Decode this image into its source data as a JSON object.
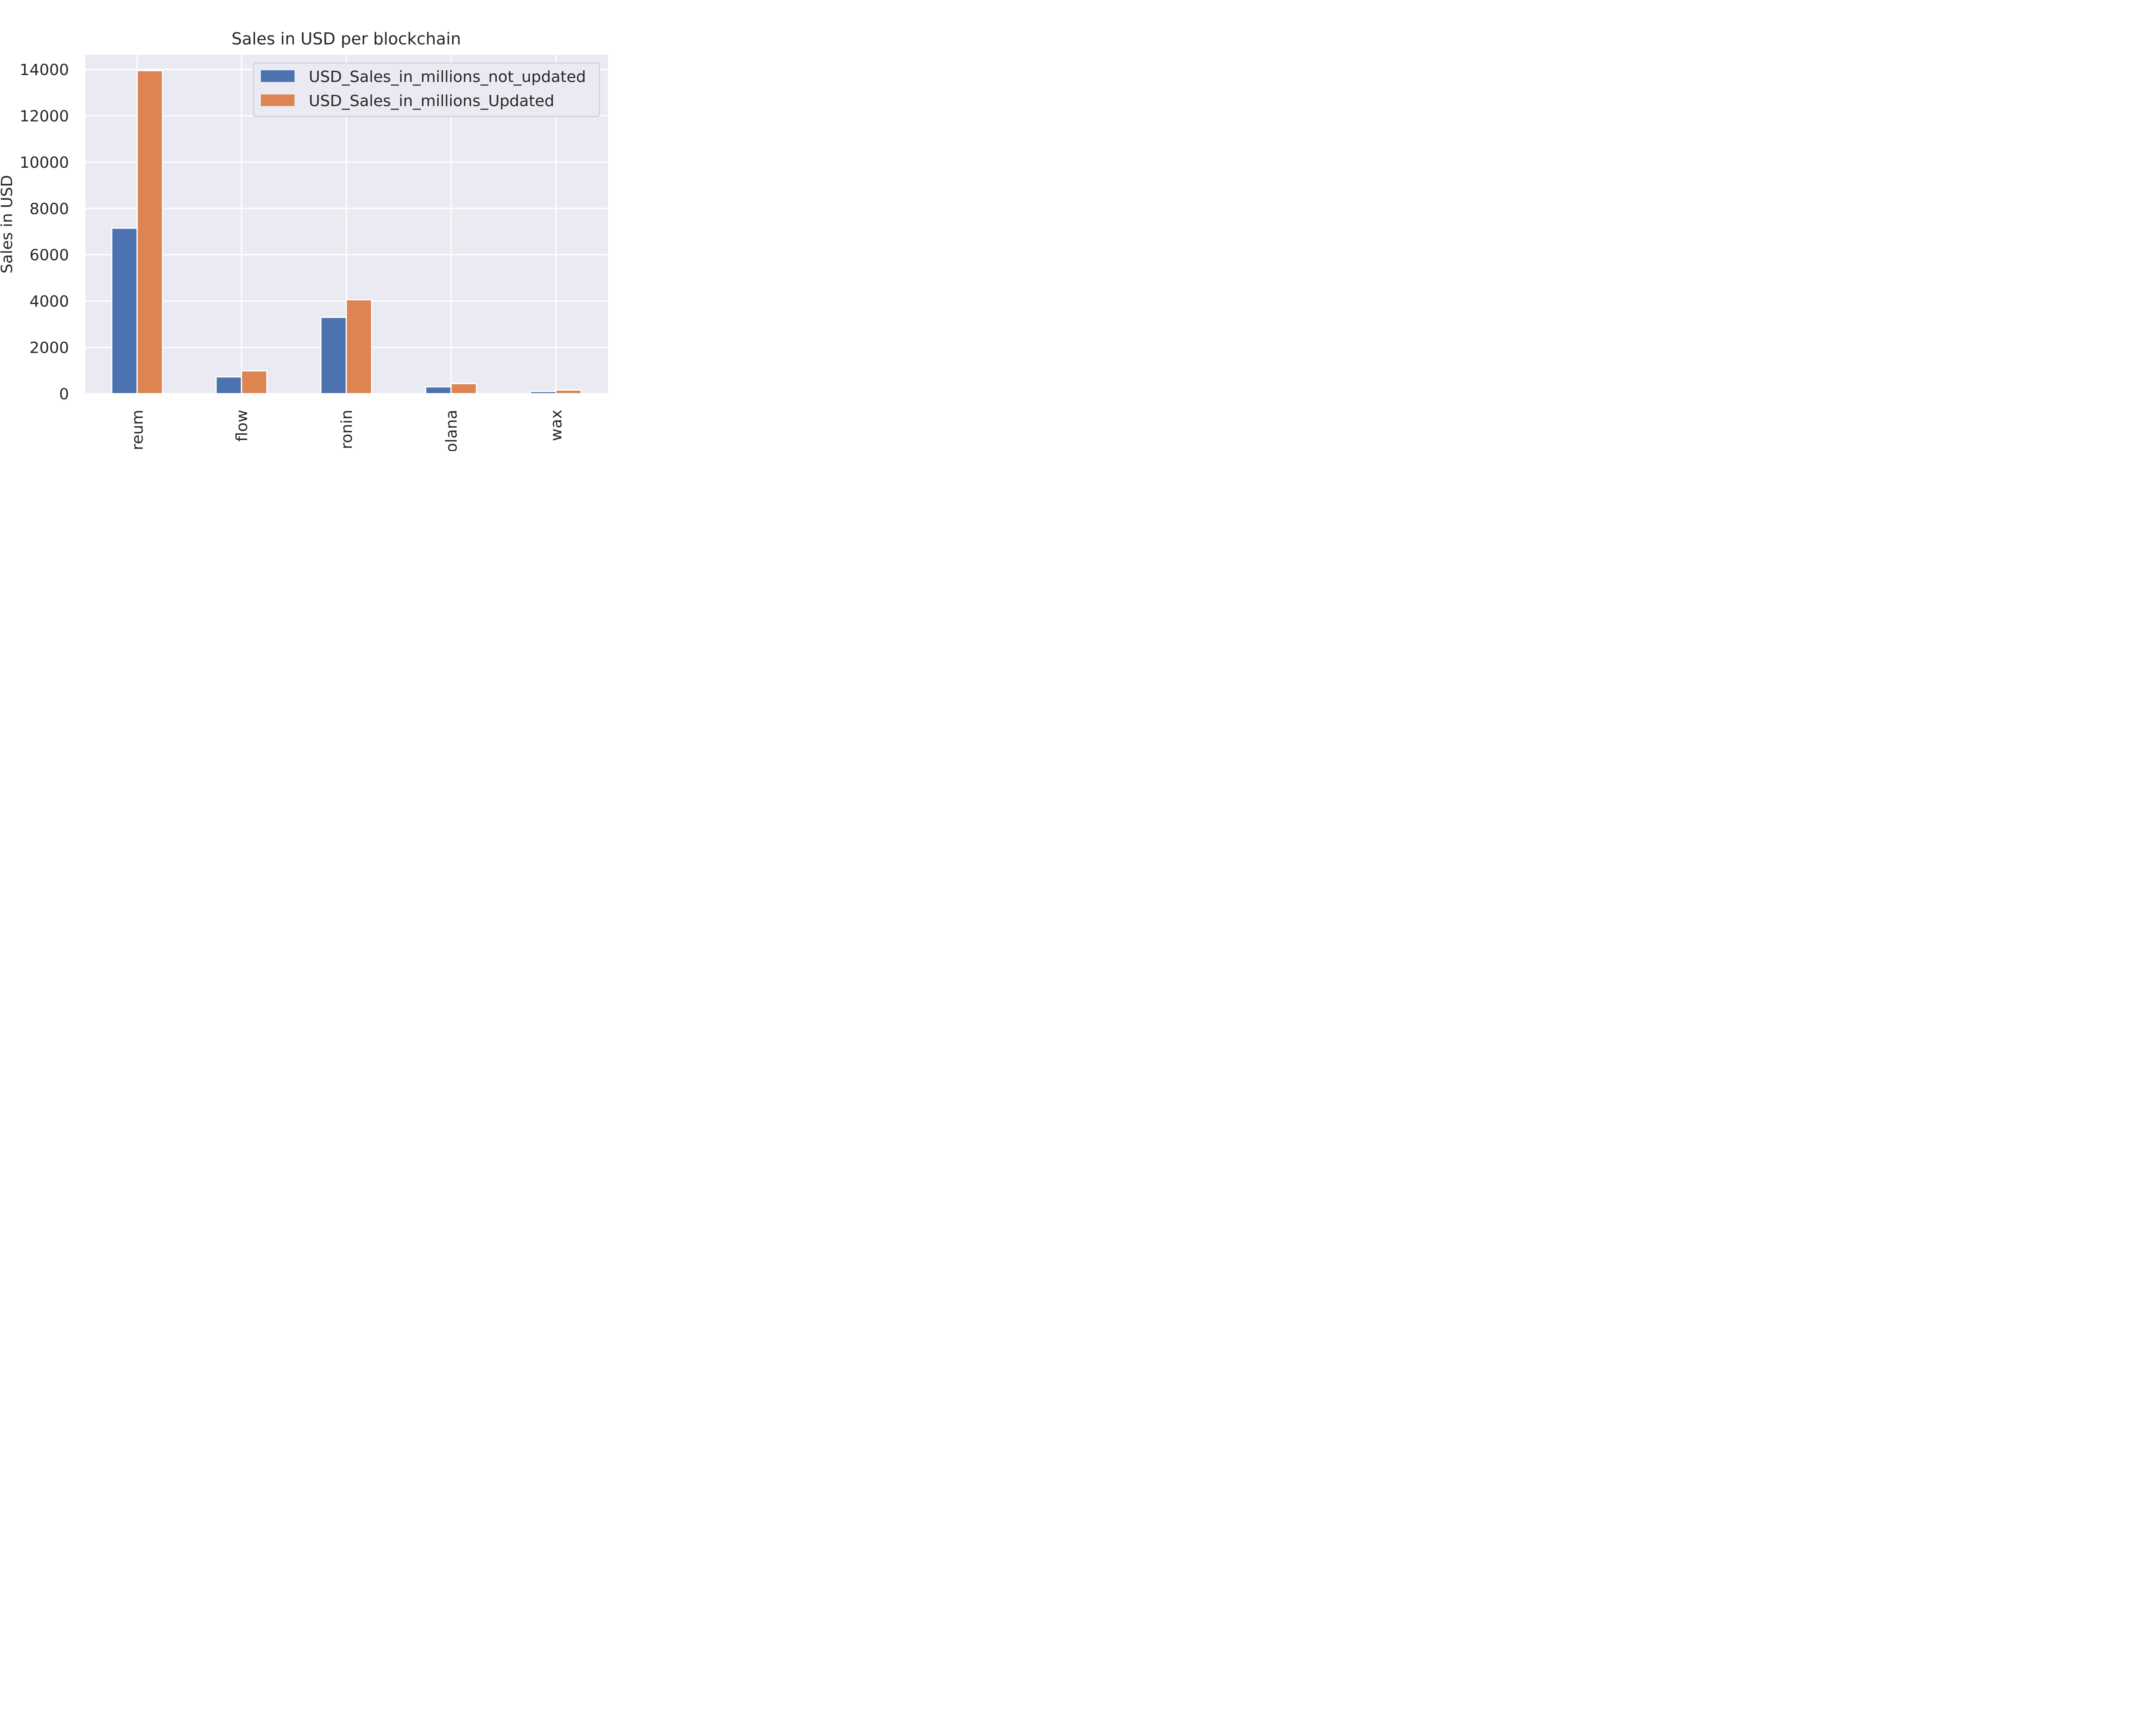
{
  "chart_data": {
    "type": "bar",
    "title": "Sales in USD per blockchain",
    "xlabel": "",
    "ylabel": "Sales in USD",
    "categories": [
      "ereum",
      "flow",
      "ronin",
      "olana",
      "wax"
    ],
    "series": [
      {
        "name": "USD_Sales_in_millions_not_updated",
        "values": [
          7150,
          730,
          3300,
          300,
          100
        ]
      },
      {
        "name": "USD_Sales_in_millions_Updated",
        "values": [
          13950,
          990,
          4060,
          440,
          160
        ]
      }
    ],
    "ylim": [
      0,
      14600
    ],
    "yticks": [
      0,
      2000,
      4000,
      6000,
      8000,
      10000,
      12000,
      14000
    ],
    "ytick_labels": [
      "0",
      "2000",
      "4000",
      "6000",
      "8000",
      "10000",
      "12000",
      "14000"
    ],
    "grid": true,
    "legend_position": "top-right",
    "colors": {
      "series": [
        "#4c72b0",
        "#dd8452"
      ],
      "axes_background": "#eaeaf2",
      "grid": "#ffffff",
      "text": "#262626"
    }
  }
}
